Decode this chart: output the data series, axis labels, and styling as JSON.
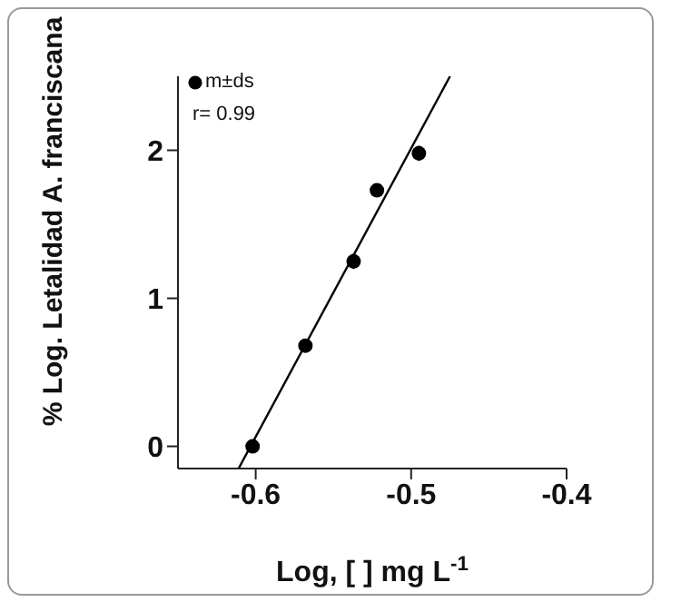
{
  "chart_data": {
    "type": "scatter",
    "xlabel": "Log, [ ] mg L$^{-1}$",
    "ylabel": "% Log. Letalidad A. franciscana",
    "xlim": [
      -0.65,
      -0.4
    ],
    "xticks": [
      -0.6,
      -0.5,
      -0.4
    ],
    "ylim": [
      -0.15,
      2.5
    ],
    "yticks": [
      0,
      1,
      2
    ],
    "grid": false,
    "legend": "top left",
    "marker": "circle",
    "annotations": [
      "r= 0.99"
    ],
    "series": [
      {
        "name": "m±ds",
        "color": "#000000",
        "x": [
          -0.602,
          -0.568,
          -0.537,
          -0.522,
          -0.495
        ],
        "values": [
          0,
          0.68,
          1.25,
          1.73,
          1.98
        ],
        "errors": [
          null,
          null,
          0.05,
          null,
          0.05
        ]
      },
      {
        "type": "line",
        "color": "#000000",
        "x": [
          -0.611,
          -0.475
        ],
        "values": [
          -0.15,
          2.5
        ],
        "marker": "none",
        "line_style": "solid"
      }
    ]
  }
}
